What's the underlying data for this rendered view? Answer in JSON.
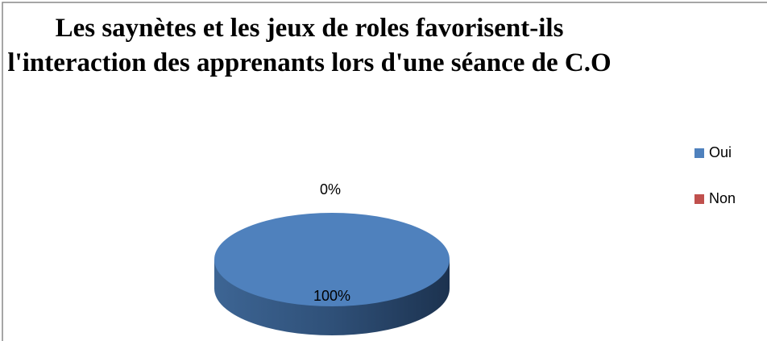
{
  "chart_data": {
    "type": "pie",
    "title": "Les saynètes et les jeux de roles favorisent-ils l'interaction des apprenants lors d'une séance de C.O",
    "categories": [
      "Oui",
      "Non"
    ],
    "values": [
      100,
      0
    ],
    "value_labels": [
      "100%",
      "0%"
    ],
    "colors": [
      "#4f81bd",
      "#c0504d"
    ],
    "legend": "right"
  }
}
